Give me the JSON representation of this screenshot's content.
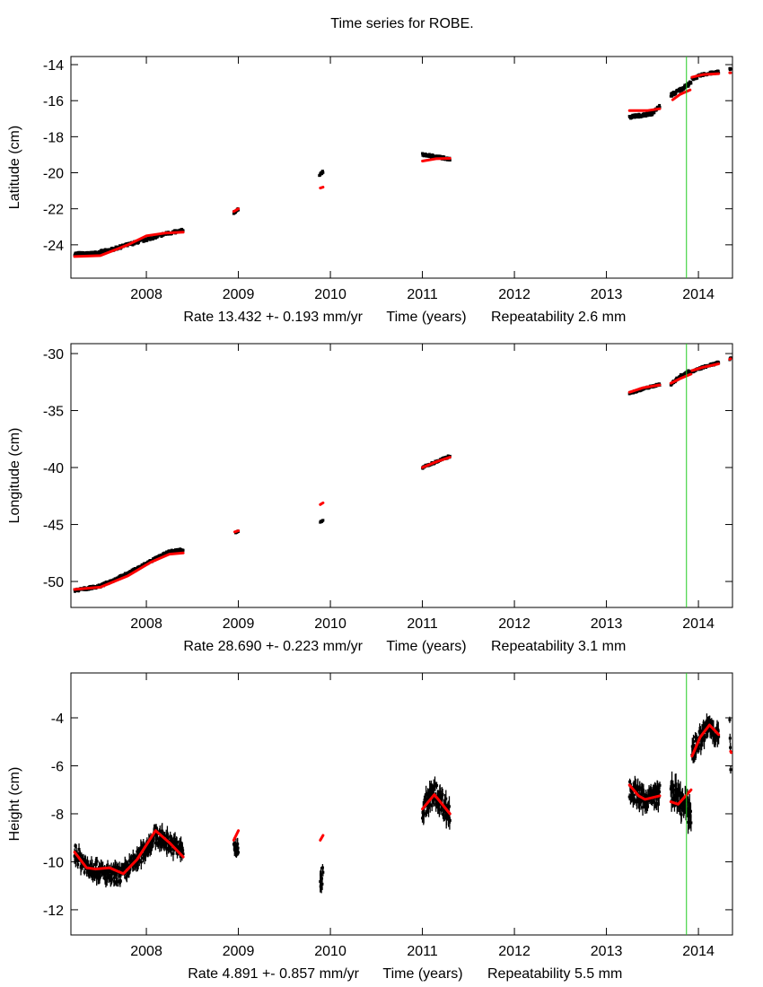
{
  "title": "Time series for ROBE.",
  "colors": {
    "observed": "#000000",
    "model": "#ff0000",
    "marker_line": "#22cc22",
    "axis": "#000000"
  },
  "chart_data": [
    {
      "type": "scatter",
      "title": "Time series for ROBE.",
      "ylabel": "Latitude (cm)",
      "xlabel": "Time (years)",
      "rate_label": "Rate 13.432 +- 0.193 mm/yr",
      "repeatability_label": "Repeatability 2.6 mm",
      "xlim": [
        2007.18,
        2014.37
      ],
      "ylim": [
        -25.85,
        -13.55
      ],
      "xticks": [
        2008,
        2009,
        2010,
        2011,
        2012,
        2013,
        2014
      ],
      "yticks": [
        -14,
        -16,
        -18,
        -20,
        -22,
        -24
      ],
      "vline": 2013.87,
      "segments": [
        {
          "obs": [
            [
              2007.22,
              -24.5
            ],
            [
              2007.4,
              -24.5
            ],
            [
              2007.6,
              -24.3
            ],
            [
              2007.8,
              -24.0
            ],
            [
              2008.0,
              -23.7
            ],
            [
              2008.2,
              -23.4
            ],
            [
              2008.4,
              -23.2
            ]
          ],
          "spread": 0.35,
          "model": [
            [
              2007.22,
              -24.65
            ],
            [
              2007.5,
              -24.6
            ],
            [
              2007.8,
              -24.0
            ],
            [
              2008.0,
              -23.5
            ],
            [
              2008.2,
              -23.35
            ],
            [
              2008.4,
              -23.3
            ]
          ]
        },
        {
          "obs": [
            [
              2008.95,
              -22.2
            ],
            [
              2009.0,
              -22.05
            ]
          ],
          "spread": 0.3,
          "model": [
            [
              2008.95,
              -22.15
            ],
            [
              2009.0,
              -22.0
            ]
          ]
        },
        {
          "obs": [
            [
              2009.88,
              -20.1
            ],
            [
              2009.92,
              -19.95
            ]
          ],
          "spread": 0.25,
          "model": [
            [
              2009.89,
              -20.85
            ],
            [
              2009.92,
              -20.8
            ]
          ]
        },
        {
          "obs": [
            [
              2011.0,
              -19.0
            ],
            [
              2011.15,
              -19.1
            ],
            [
              2011.3,
              -19.25
            ]
          ],
          "spread": 0.3,
          "model": [
            [
              2011.0,
              -19.35
            ],
            [
              2011.15,
              -19.22
            ],
            [
              2011.3,
              -19.2
            ]
          ]
        },
        {
          "obs": [
            [
              2013.25,
              -16.9
            ],
            [
              2013.4,
              -16.8
            ],
            [
              2013.5,
              -16.7
            ],
            [
              2013.58,
              -16.3
            ]
          ],
          "spread": 0.35,
          "model": [
            [
              2013.25,
              -16.55
            ],
            [
              2013.45,
              -16.55
            ],
            [
              2013.58,
              -16.45
            ]
          ]
        },
        {
          "obs": [
            [
              2013.7,
              -15.7
            ],
            [
              2013.8,
              -15.4
            ],
            [
              2013.92,
              -15.0
            ]
          ],
          "spread": 0.4,
          "model": [
            [
              2013.72,
              -15.95
            ],
            [
              2013.8,
              -15.65
            ],
            [
              2013.91,
              -15.4
            ]
          ]
        },
        {
          "obs": [
            [
              2013.93,
              -14.8
            ],
            [
              2014.05,
              -14.55
            ],
            [
              2014.22,
              -14.4
            ]
          ],
          "spread": 0.3,
          "model": [
            [
              2013.93,
              -14.7
            ],
            [
              2014.05,
              -14.55
            ],
            [
              2014.22,
              -14.5
            ]
          ]
        },
        {
          "obs": [
            [
              2014.34,
              -14.25
            ],
            [
              2014.35,
              -14.2
            ]
          ],
          "spread": 0.2,
          "model": [
            [
              2014.34,
              -14.45
            ],
            [
              2014.35,
              -14.45
            ]
          ]
        }
      ]
    },
    {
      "type": "scatter",
      "ylabel": "Longitude (cm)",
      "xlabel": "Time (years)",
      "rate_label": "Rate 28.690 +- 0.223 mm/yr",
      "repeatability_label": "Repeatability 3.1 mm",
      "xlim": [
        2007.18,
        2014.37
      ],
      "ylim": [
        -52.28,
        -29.13
      ],
      "xticks": [
        2008,
        2009,
        2010,
        2011,
        2012,
        2013,
        2014
      ],
      "yticks": [
        -30,
        -35,
        -40,
        -45,
        -50
      ],
      "vline": 2013.87,
      "segments": [
        {
          "obs": [
            [
              2007.22,
              -50.8
            ],
            [
              2007.5,
              -50.4
            ],
            [
              2007.8,
              -49.3
            ],
            [
              2008.05,
              -48.2
            ],
            [
              2008.25,
              -47.4
            ],
            [
              2008.4,
              -47.2
            ]
          ],
          "spread": 0.5,
          "model": [
            [
              2007.22,
              -50.7
            ],
            [
              2007.5,
              -50.5
            ],
            [
              2007.8,
              -49.5
            ],
            [
              2008.05,
              -48.3
            ],
            [
              2008.25,
              -47.6
            ],
            [
              2008.4,
              -47.5
            ]
          ]
        },
        {
          "obs": [
            [
              2008.97,
              -45.7
            ],
            [
              2009.0,
              -45.6
            ]
          ],
          "spread": 0.3,
          "model": [
            [
              2008.96,
              -45.65
            ],
            [
              2009.0,
              -45.55
            ]
          ]
        },
        {
          "obs": [
            [
              2009.89,
              -44.8
            ],
            [
              2009.92,
              -44.7
            ]
          ],
          "spread": 0.3,
          "model": [
            [
              2009.89,
              -43.25
            ],
            [
              2009.92,
              -43.1
            ]
          ]
        },
        {
          "obs": [
            [
              2011.0,
              -40.0
            ],
            [
              2011.15,
              -39.5
            ],
            [
              2011.3,
              -39.0
            ]
          ],
          "spread": 0.4,
          "model": [
            [
              2011.0,
              -40.0
            ],
            [
              2011.15,
              -39.5
            ],
            [
              2011.3,
              -39.1
            ]
          ]
        },
        {
          "obs": [
            [
              2013.25,
              -33.5
            ],
            [
              2013.4,
              -33.1
            ],
            [
              2013.58,
              -32.7
            ]
          ],
          "spread": 0.35,
          "model": [
            [
              2013.25,
              -33.4
            ],
            [
              2013.4,
              -33.0
            ],
            [
              2013.58,
              -32.75
            ]
          ]
        },
        {
          "obs": [
            [
              2013.7,
              -32.7
            ],
            [
              2013.8,
              -32.0
            ],
            [
              2013.92,
              -31.5
            ]
          ],
          "spread": 0.5,
          "model": [
            [
              2013.7,
              -32.6
            ],
            [
              2013.8,
              -32.2
            ],
            [
              2013.92,
              -31.8
            ]
          ]
        },
        {
          "obs": [
            [
              2013.93,
              -31.6
            ],
            [
              2014.05,
              -31.2
            ],
            [
              2014.22,
              -30.8
            ]
          ],
          "spread": 0.4,
          "model": [
            [
              2013.93,
              -31.5
            ],
            [
              2014.05,
              -31.2
            ],
            [
              2014.22,
              -30.9
            ]
          ]
        },
        {
          "obs": [
            [
              2014.34,
              -30.5
            ],
            [
              2014.35,
              -30.4
            ]
          ],
          "spread": 0.25,
          "model": [
            [
              2014.34,
              -30.5
            ],
            [
              2014.35,
              -30.45
            ]
          ]
        }
      ]
    },
    {
      "type": "scatter",
      "ylabel": "Height (cm)",
      "xlabel": "Time (years)",
      "rate_label": "Rate 4.891 +- 0.857 mm/yr",
      "repeatability_label": "Repeatability 5.5 mm",
      "xlim": [
        2007.18,
        2014.37
      ],
      "ylim": [
        -13.05,
        -2.13
      ],
      "xticks": [
        2008,
        2009,
        2010,
        2011,
        2012,
        2013,
        2014
      ],
      "yticks": [
        -4,
        -6,
        -8,
        -10,
        -12
      ],
      "vline": 2013.87,
      "segments": [
        {
          "obs": [
            [
              2007.22,
              -9.6
            ],
            [
              2007.35,
              -10.2
            ],
            [
              2007.45,
              -10.3
            ],
            [
              2007.6,
              -10.6
            ],
            [
              2007.75,
              -10.5
            ],
            [
              2007.9,
              -9.9
            ],
            [
              2008.1,
              -8.9
            ],
            [
              2008.25,
              -9.2
            ],
            [
              2008.4,
              -9.6
            ]
          ],
          "spread": 1.4,
          "model": [
            [
              2007.22,
              -9.6
            ],
            [
              2007.35,
              -10.25
            ],
            [
              2007.45,
              -10.3
            ],
            [
              2007.6,
              -10.25
            ],
            [
              2007.75,
              -10.5
            ],
            [
              2007.9,
              -9.9
            ],
            [
              2008.1,
              -8.7
            ],
            [
              2008.25,
              -9.2
            ],
            [
              2008.4,
              -9.8
            ]
          ]
        },
        {
          "obs": [
            [
              2008.95,
              -9.3
            ],
            [
              2009.0,
              -9.6
            ]
          ],
          "spread": 1.2,
          "model": [
            [
              2008.95,
              -9.1
            ],
            [
              2009.0,
              -8.7
            ]
          ]
        },
        {
          "obs": [
            [
              2009.89,
              -10.8
            ],
            [
              2009.92,
              -10.6
            ]
          ],
          "spread": 2.0,
          "model": [
            [
              2009.89,
              -9.1
            ],
            [
              2009.92,
              -8.9
            ]
          ]
        },
        {
          "obs": [
            [
              2011.0,
              -7.8
            ],
            [
              2011.13,
              -7.1
            ],
            [
              2011.3,
              -8.0
            ]
          ],
          "spread": 1.8,
          "model": [
            [
              2011.0,
              -7.8
            ],
            [
              2011.13,
              -7.2
            ],
            [
              2011.3,
              -8.0
            ]
          ]
        },
        {
          "obs": [
            [
              2013.25,
              -7.0
            ],
            [
              2013.42,
              -7.4
            ],
            [
              2013.58,
              -7.2
            ]
          ],
          "spread": 1.6,
          "model": [
            [
              2013.25,
              -6.8
            ],
            [
              2013.35,
              -7.25
            ],
            [
              2013.42,
              -7.4
            ],
            [
              2013.58,
              -7.25
            ]
          ]
        },
        {
          "obs": [
            [
              2013.7,
              -7.0
            ],
            [
              2013.78,
              -7.4
            ],
            [
              2013.92,
              -8.0
            ]
          ],
          "spread": 2.0,
          "model": [
            [
              2013.7,
              -7.5
            ],
            [
              2013.78,
              -7.6
            ],
            [
              2013.92,
              -7.0
            ]
          ]
        },
        {
          "obs": [
            [
              2013.93,
              -5.4
            ],
            [
              2014.12,
              -4.3
            ],
            [
              2014.22,
              -4.8
            ]
          ],
          "spread": 1.6,
          "model": [
            [
              2013.93,
              -5.6
            ],
            [
              2014.02,
              -4.8
            ],
            [
              2014.12,
              -4.3
            ],
            [
              2014.22,
              -4.7
            ]
          ]
        },
        {
          "obs": [
            [
              2014.34,
              -4.2
            ],
            [
              2014.35,
              -6.0
            ]
          ],
          "spread": 0.8,
          "model": [
            [
              2014.35,
              -5.4
            ],
            [
              2014.355,
              -5.45
            ]
          ]
        }
      ]
    }
  ]
}
